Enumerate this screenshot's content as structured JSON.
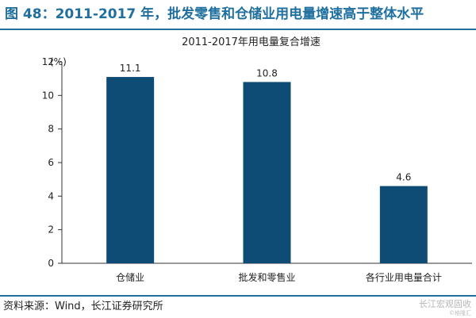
{
  "figure": {
    "title": "图 48：2011-2017 年，批发零售和仓储业用电量增速高于整体水平",
    "source": "资料来源：Wind，长江证券研究所",
    "watermark": "长江宏观固收",
    "watermark_sub": "©格隆汇"
  },
  "colors": {
    "bar": "#0f4c75",
    "accent": "#1f6f9f"
  },
  "chart_data": {
    "type": "bar",
    "title": "2011-2017年用电量复合增速",
    "ylabel": "(%)",
    "xlabel": "",
    "categories": [
      "仓储业",
      "批发和零售业",
      "各行业用电量合计"
    ],
    "values": [
      11.1,
      10.8,
      4.6
    ],
    "value_labels": [
      "11.1",
      "10.8",
      "4.6"
    ],
    "ylim": [
      0,
      12
    ],
    "yticks": [
      0,
      2,
      4,
      6,
      8,
      10,
      12
    ],
    "grid": false,
    "legend": "none"
  }
}
